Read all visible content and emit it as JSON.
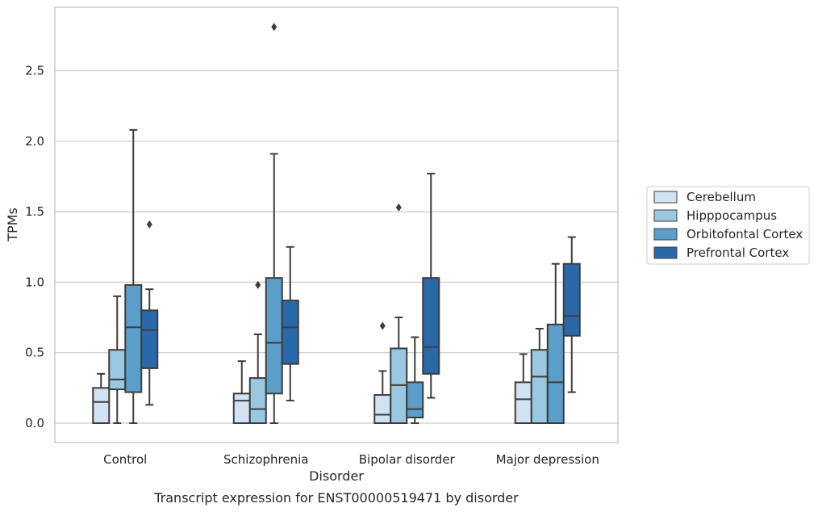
{
  "chart_data": {
    "type": "box",
    "caption": "Transcript expression for ENST00000519471 by disorder",
    "xlabel": "Disorder",
    "ylabel": "TPMs",
    "ylim": [
      -0.13,
      2.95
    ],
    "yticks": [
      "0.0",
      "0.5",
      "1.0",
      "1.5",
      "2.0",
      "2.5"
    ],
    "ytick_values": [
      0.0,
      0.5,
      1.0,
      1.5,
      2.0,
      2.5
    ],
    "grid": "horizontal",
    "legend_position": "right",
    "categories": [
      "Control",
      "Schizophrenia",
      "Bipolar disorder",
      "Major depression"
    ],
    "series": [
      {
        "name": "Cerebellum",
        "color": "#d1e2f2",
        "boxes": [
          {
            "whisker_low": 0.0,
            "q1": 0.0,
            "median": 0.15,
            "q3": 0.25,
            "whisker_high": 0.35,
            "outliers": []
          },
          {
            "whisker_low": 0.0,
            "q1": 0.0,
            "median": 0.16,
            "q3": 0.21,
            "whisker_high": 0.44,
            "outliers": []
          },
          {
            "whisker_low": 0.0,
            "q1": 0.0,
            "median": 0.06,
            "q3": 0.2,
            "whisker_high": 0.37,
            "outliers": [
              0.69
            ]
          },
          {
            "whisker_low": 0.0,
            "q1": 0.0,
            "median": 0.17,
            "q3": 0.29,
            "whisker_high": 0.49,
            "outliers": []
          }
        ]
      },
      {
        "name": "Hipppocampus",
        "color": "#9ac8e0",
        "boxes": [
          {
            "whisker_low": 0.0,
            "q1": 0.24,
            "median": 0.31,
            "q3": 0.52,
            "whisker_high": 0.9,
            "outliers": []
          },
          {
            "whisker_low": 0.0,
            "q1": 0.0,
            "median": 0.1,
            "q3": 0.32,
            "whisker_high": 0.63,
            "outliers": [
              0.98
            ]
          },
          {
            "whisker_low": 0.0,
            "q1": 0.0,
            "median": 0.27,
            "q3": 0.53,
            "whisker_high": 0.75,
            "outliers": [
              1.53
            ]
          },
          {
            "whisker_low": 0.0,
            "q1": 0.0,
            "median": 0.33,
            "q3": 0.52,
            "whisker_high": 0.67,
            "outliers": []
          }
        ]
      },
      {
        "name": "Orbitofontal Cortex",
        "color": "#5a9ec9",
        "boxes": [
          {
            "whisker_low": 0.0,
            "q1": 0.22,
            "median": 0.68,
            "q3": 0.98,
            "whisker_high": 2.08,
            "outliers": []
          },
          {
            "whisker_low": 0.0,
            "q1": 0.21,
            "median": 0.57,
            "q3": 1.03,
            "whisker_high": 1.91,
            "outliers": [
              2.81
            ]
          },
          {
            "whisker_low": 0.0,
            "q1": 0.04,
            "median": 0.1,
            "q3": 0.29,
            "whisker_high": 0.61,
            "outliers": []
          },
          {
            "whisker_low": 0.0,
            "q1": 0.0,
            "median": 0.29,
            "q3": 0.7,
            "whisker_high": 1.13,
            "outliers": []
          }
        ]
      },
      {
        "name": "Prefrontal Cortex",
        "color": "#2a69a9",
        "boxes": [
          {
            "whisker_low": 0.13,
            "q1": 0.39,
            "median": 0.66,
            "q3": 0.8,
            "whisker_high": 0.95,
            "outliers": [
              1.41
            ]
          },
          {
            "whisker_low": 0.16,
            "q1": 0.42,
            "median": 0.68,
            "q3": 0.87,
            "whisker_high": 1.25,
            "outliers": []
          },
          {
            "whisker_low": 0.18,
            "q1": 0.35,
            "median": 0.54,
            "q3": 1.03,
            "whisker_high": 1.77,
            "outliers": []
          },
          {
            "whisker_low": 0.22,
            "q1": 0.62,
            "median": 0.76,
            "q3": 1.13,
            "whisker_high": 1.32,
            "outliers": []
          }
        ]
      }
    ]
  }
}
